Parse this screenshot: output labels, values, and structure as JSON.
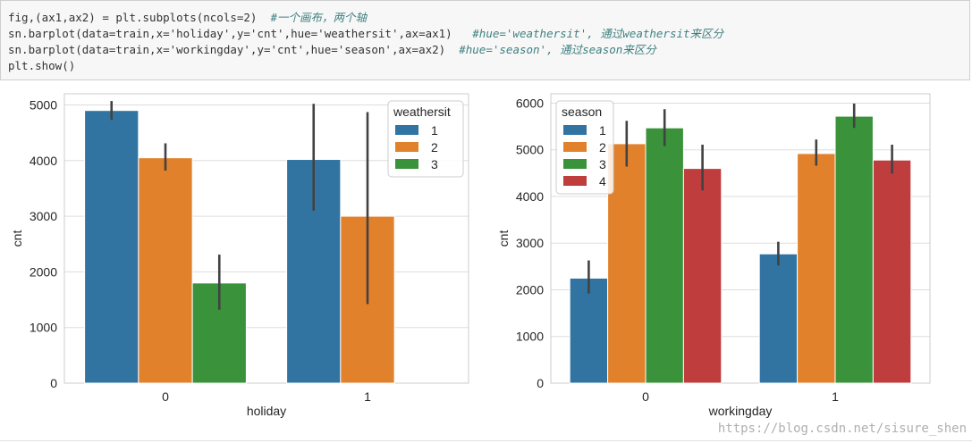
{
  "code_cell": {
    "lines": [
      {
        "code": "fig,(ax1,ax2) = plt.subplots(ncols=2)",
        "comment": "#一个画布，两个轴"
      },
      {
        "code": "sn.barplot(data=train,x='holiday',y='cnt',hue='weathersit',ax=ax1)",
        "comment": "#hue='weathersit', 通过weathersit来区分"
      },
      {
        "code": "sn.barplot(data=train,x='workingday',y='cnt',hue='season',ax=ax2)",
        "comment": "#hue='season', 通过season来区分"
      },
      {
        "code": "plt.show()",
        "comment": ""
      }
    ]
  },
  "watermark": "https://blog.csdn.net/sisure_shen",
  "colors": {
    "blue": "#3274a1",
    "orange": "#e1812c",
    "green": "#3a923a",
    "red": "#c03d3e",
    "grid": "#dddddd",
    "err": "#424242"
  },
  "chart_data": [
    {
      "type": "bar",
      "xlabel": "holiday",
      "ylabel": "cnt",
      "categories": [
        "0",
        "1"
      ],
      "ylim": [
        0,
        5200
      ],
      "yticks": [
        0,
        1000,
        2000,
        3000,
        4000,
        5000
      ],
      "legend": {
        "title": "weathersit",
        "placement": "top-right"
      },
      "series": [
        {
          "name": "1",
          "color": "#3274a1",
          "values": [
            4900,
            4020
          ],
          "err_low": [
            4730,
            3100
          ],
          "err_high": [
            5070,
            5020
          ]
        },
        {
          "name": "2",
          "color": "#e1812c",
          "values": [
            4050,
            3000
          ],
          "err_low": [
            3820,
            1420
          ],
          "err_high": [
            4310,
            4870
          ]
        },
        {
          "name": "3",
          "color": "#3a923a",
          "values": [
            1800,
            null
          ],
          "err_low": [
            1320,
            null
          ],
          "err_high": [
            2310,
            null
          ]
        }
      ]
    },
    {
      "type": "bar",
      "xlabel": "workingday",
      "ylabel": "cnt",
      "categories": [
        "0",
        "1"
      ],
      "ylim": [
        0,
        6200
      ],
      "yticks": [
        0,
        1000,
        2000,
        3000,
        4000,
        5000,
        6000
      ],
      "legend": {
        "title": "season",
        "placement": "top-left"
      },
      "series": [
        {
          "name": "1",
          "color": "#3274a1",
          "values": [
            2250,
            2770
          ],
          "err_low": [
            1920,
            2520
          ],
          "err_high": [
            2630,
            3030
          ]
        },
        {
          "name": "2",
          "color": "#e1812c",
          "values": [
            5130,
            4920
          ],
          "err_low": [
            4640,
            4660
          ],
          "err_high": [
            5620,
            5220
          ]
        },
        {
          "name": "3",
          "color": "#3a923a",
          "values": [
            5470,
            5720
          ],
          "err_low": [
            5080,
            5470
          ],
          "err_high": [
            5870,
            5990
          ]
        },
        {
          "name": "4",
          "color": "#c03d3e",
          "values": [
            4600,
            4780
          ],
          "err_low": [
            4130,
            4490
          ],
          "err_high": [
            5110,
            5110
          ]
        }
      ]
    }
  ]
}
